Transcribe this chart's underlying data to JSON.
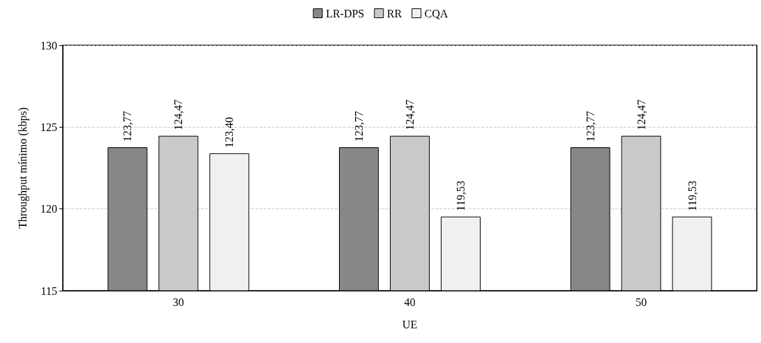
{
  "chart_data": {
    "type": "bar",
    "xlabel": "UE",
    "ylabel": "Throughput mínimo (kbps)",
    "categories": [
      "30",
      "40",
      "50"
    ],
    "series": [
      {
        "name": "LR-DPS",
        "color": "#878787",
        "values": [
          123.77,
          123.77,
          123.77
        ],
        "value_labels": [
          "123,77",
          "123,77",
          "123,77"
        ]
      },
      {
        "name": "RR",
        "color": "#c9c9c9",
        "values": [
          124.47,
          124.47,
          124.47
        ],
        "value_labels": [
          "124,47",
          "124,47",
          "124,47"
        ]
      },
      {
        "name": "CQA",
        "color": "#f0f0f0",
        "values": [
          123.4,
          119.53,
          119.53
        ],
        "value_labels": [
          "123,40",
          "119,53",
          "119,53"
        ]
      }
    ],
    "ylim": [
      115,
      130
    ],
    "yticks": [
      115,
      120,
      125,
      130
    ],
    "grid": "y",
    "legend": "top"
  }
}
